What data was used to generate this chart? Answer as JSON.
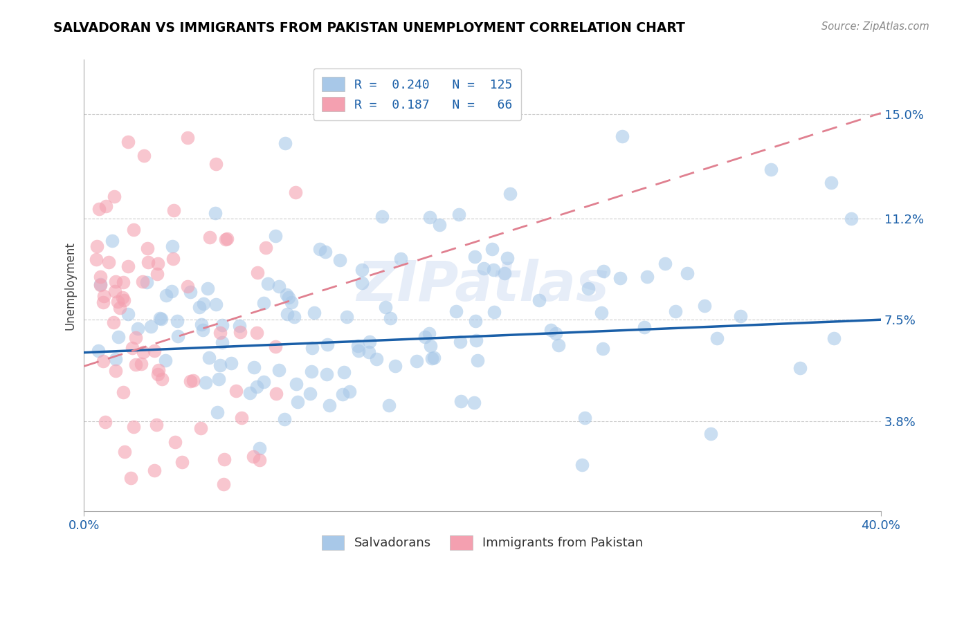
{
  "title": "SALVADORAN VS IMMIGRANTS FROM PAKISTAN UNEMPLOYMENT CORRELATION CHART",
  "source": "Source: ZipAtlas.com",
  "ylabel": "Unemployment",
  "y_ticks": [
    3.8,
    7.5,
    11.2,
    15.0
  ],
  "x_min": 0.0,
  "x_max": 40.0,
  "y_min": 0.5,
  "y_max": 17.0,
  "blue_color": "#a8c8e8",
  "pink_color": "#f4a0b0",
  "blue_line_color": "#1a5fa8",
  "pink_line_color": "#e08090",
  "watermark": "ZIPatlas",
  "blue_R": 0.24,
  "blue_N": 125,
  "pink_R": 0.187,
  "pink_N": 66,
  "legend_blue_label": "R =  0.240   N =  125",
  "legend_pink_label": "R =  0.187   N =   66",
  "bottom_legend_blue": "Salvadorans",
  "bottom_legend_pink": "Immigrants from Pakistan"
}
